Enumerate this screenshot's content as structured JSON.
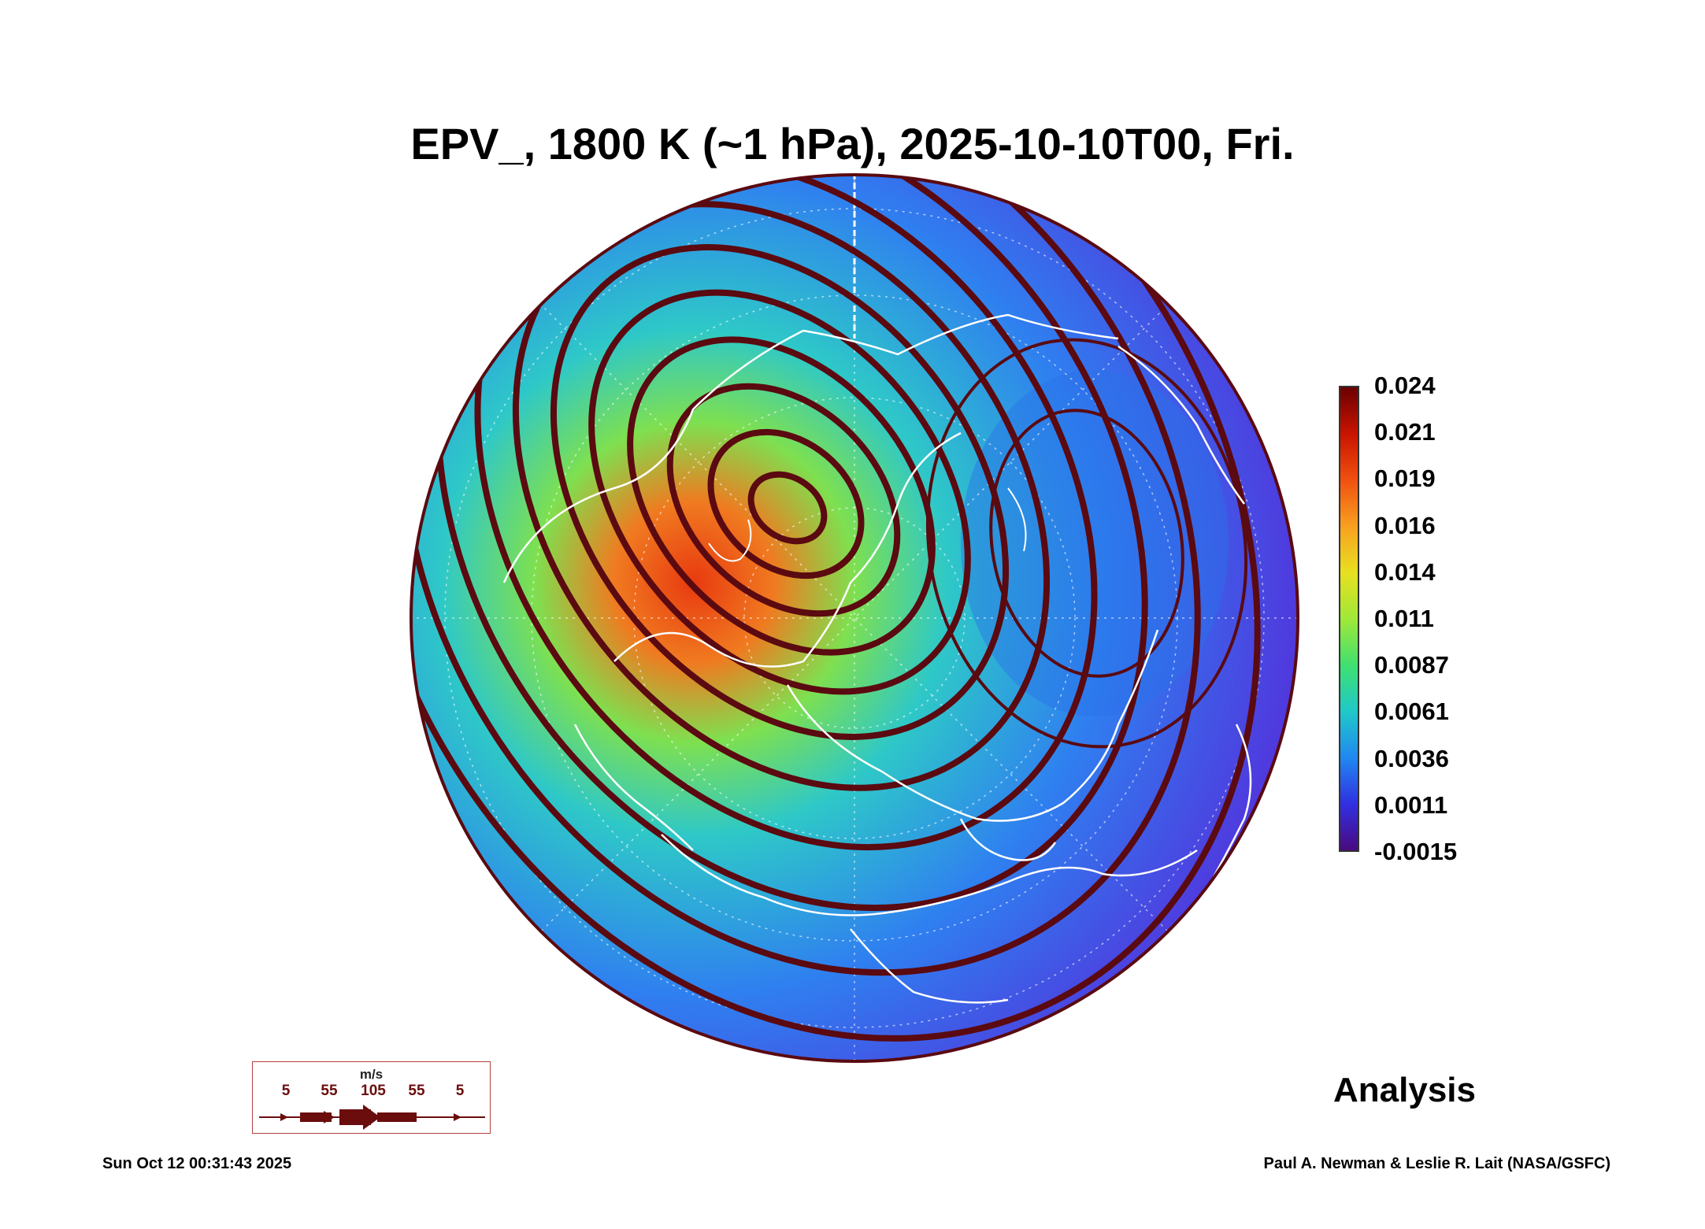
{
  "header": {
    "title": "EPV_, 1800 K (~1 hPa), 2025-10-10T00, Fri."
  },
  "colorbar": {
    "labels": [
      "0.024",
      "0.021",
      "0.019",
      "0.016",
      "0.014",
      "0.011",
      "0.0087",
      "0.0061",
      "0.0036",
      "0.0011",
      "-0.0015"
    ],
    "colors": [
      "#6b0000",
      "#c81400",
      "#f05010",
      "#f8a020",
      "#e8e020",
      "#a0e838",
      "#40e070",
      "#20c8c8",
      "#2088f0",
      "#3030e0",
      "#4a0a80"
    ]
  },
  "map": {
    "projection": "north polar orthographic",
    "variable": "EPV_",
    "field_colors": {
      "outer": "#5a22d8",
      "mid": "#2f7ff0",
      "inner": "#2ec8c8",
      "ring": "#7ee050",
      "core": "#f07a20",
      "peak": "#e83a10"
    },
    "streamline_color": "#5a0a10",
    "coastline_color": "#ffffff"
  },
  "legend": {
    "unit": "m/s",
    "speeds": [
      "5",
      "55",
      "105",
      "55",
      "5"
    ]
  },
  "footer": {
    "label": "Analysis",
    "timestamp": "Sun Oct 12 00:31:43 2025",
    "credit": "Paul A. Newman & Leslie R. Lait (NASA/GSFC)"
  }
}
